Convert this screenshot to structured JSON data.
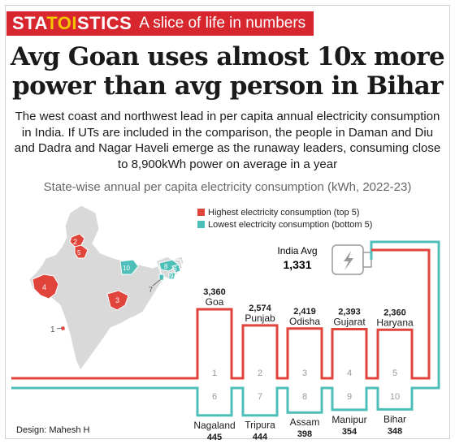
{
  "banner": {
    "brand_left": "STA",
    "brand_mid": "TOI",
    "brand_right": "STICS",
    "tagline": "A slice of life in numbers"
  },
  "headline": {
    "line1": "Avg Goan uses almost 10x more",
    "line2": "power than avg person in Bihar"
  },
  "dek": "The west coast and northwest lead in per capita annual electricity consumption in India. If UTs are included in the comparison, the people in Daman and Diu and Dadra and Nagar Haveli emerge as the runaway leaders, consuming close to 8,900kWh power on average in a year",
  "chart_data": {
    "type": "bar",
    "title": "State-wise annual per capita electricity consumption (kWh, 2022-23)",
    "legend": {
      "placement": "top-right",
      "entries": [
        {
          "name": "Highest electricity consumption (top 5)",
          "color": "#e0443b"
        },
        {
          "name": "Lowest electricity consumption (bottom 5)",
          "color": "#4dbfb8"
        }
      ]
    },
    "reference": {
      "label": "India Avg",
      "value": "1,331"
    },
    "series": [
      {
        "name": "Highest electricity consumption (top 5)",
        "color": "#e0443b",
        "categories": [
          "Goa",
          "Punjab",
          "Odisha",
          "Gujarat",
          "Haryana"
        ],
        "values": [
          3360,
          2574,
          2419,
          2393,
          2360
        ],
        "labels": [
          "3,360",
          "2,574",
          "2,419",
          "2,393",
          "2,360"
        ],
        "ranks": [
          "1",
          "2",
          "3",
          "4",
          "5"
        ]
      },
      {
        "name": "Lowest electricity consumption (bottom 5)",
        "color": "#4dbfb8",
        "categories": [
          "Nagaland",
          "Tripura",
          "Assam",
          "Manipur",
          "Bihar"
        ],
        "values": [
          445,
          444,
          398,
          354,
          348
        ],
        "labels": [
          "445",
          "444",
          "398",
          "354",
          "348"
        ],
        "ranks": [
          "6",
          "7",
          "8",
          "9",
          "10"
        ]
      }
    ],
    "map_labels": [
      "1",
      "2",
      "3",
      "4",
      "5",
      "6",
      "7",
      "8",
      "9",
      "10"
    ]
  },
  "credit": "Design: Mahesh H",
  "icons": {
    "reference": "plug-icon",
    "map": "india-map-icon"
  }
}
